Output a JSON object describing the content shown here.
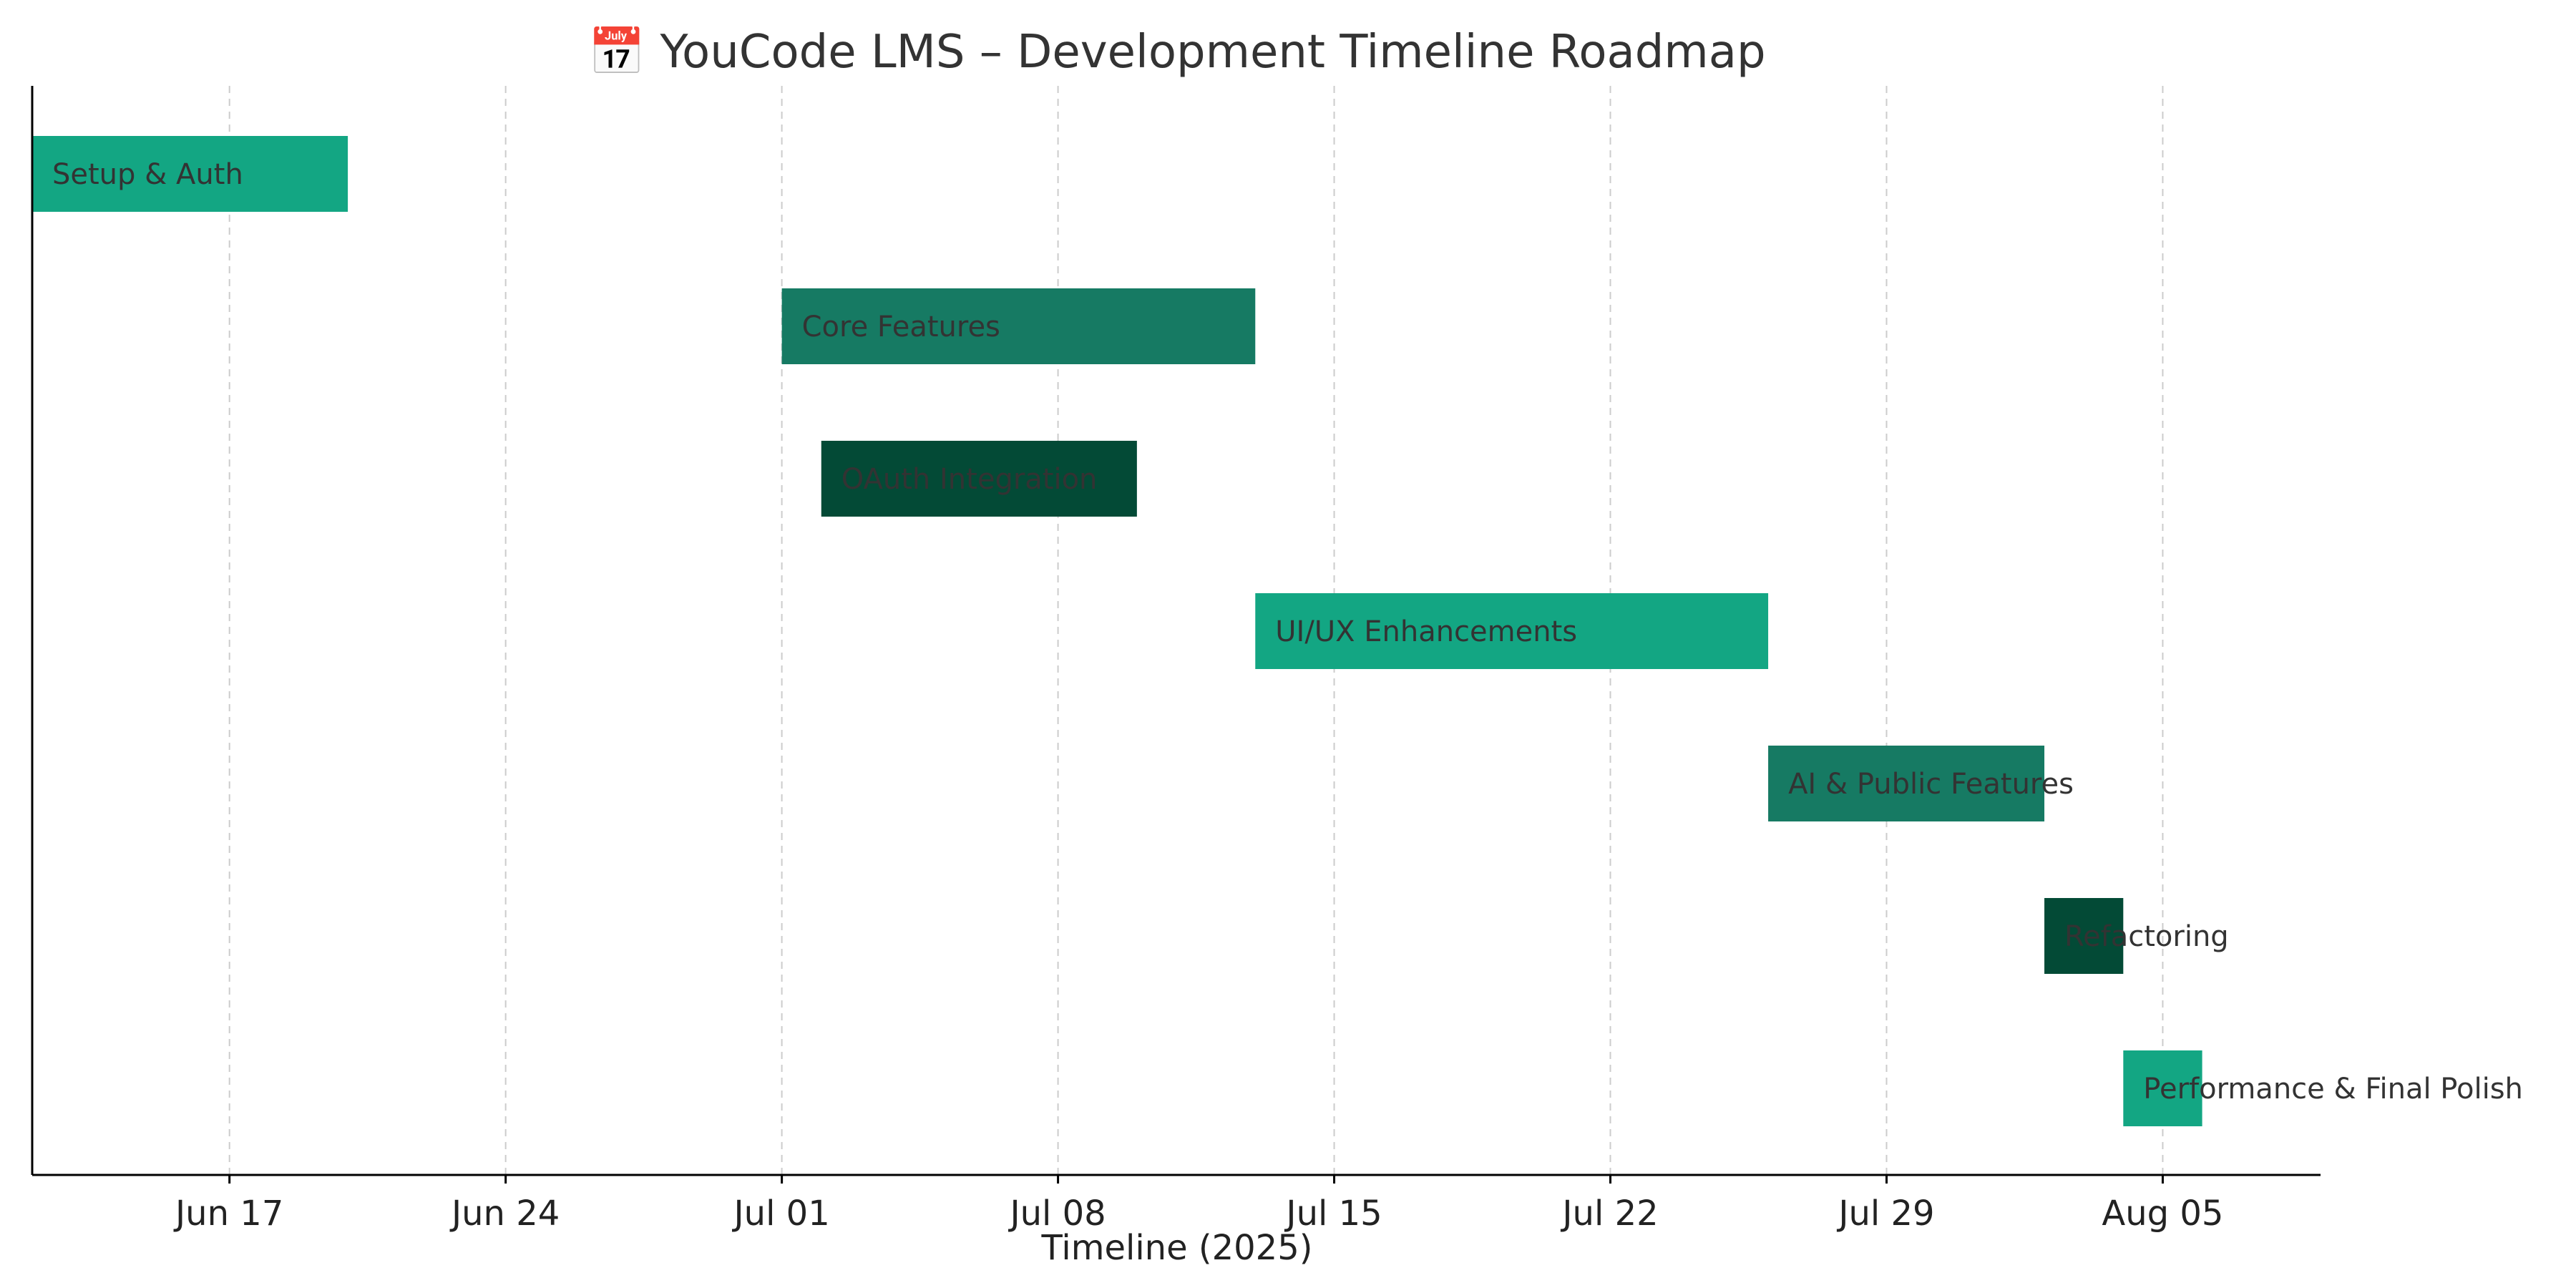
{
  "chart_data": {
    "type": "bar",
    "orientation": "horizontal-gantt",
    "title": "📅 YouCode LMS – Development Timeline Roadmap",
    "xlabel": "Timeline (2025)",
    "ylabel": "",
    "x_axis": "date",
    "xlim": [
      "2025-06-12",
      "2025-08-09"
    ],
    "xticks": [
      {
        "date": "2025-06-17",
        "label": "Jun 17"
      },
      {
        "date": "2025-06-24",
        "label": "Jun 24"
      },
      {
        "date": "2025-07-01",
        "label": "Jul 01"
      },
      {
        "date": "2025-07-08",
        "label": "Jul 08"
      },
      {
        "date": "2025-07-15",
        "label": "Jul 15"
      },
      {
        "date": "2025-07-22",
        "label": "Jul 22"
      },
      {
        "date": "2025-07-29",
        "label": "Jul 29"
      },
      {
        "date": "2025-08-05",
        "label": "Aug 05"
      }
    ],
    "grid": "vertical-dashed",
    "tasks": [
      {
        "name": "Setup & Auth",
        "start": "2025-06-12",
        "end": "2025-06-20",
        "color": "#13a683"
      },
      {
        "name": "Core Features",
        "start": "2025-07-01",
        "end": "2025-07-13",
        "color": "#167a63"
      },
      {
        "name": "OAuth Integration",
        "start": "2025-07-02",
        "end": "2025-07-10",
        "color": "#034a36"
      },
      {
        "name": "UI/UX Enhancements",
        "start": "2025-07-13",
        "end": "2025-07-26",
        "color": "#13a683"
      },
      {
        "name": "AI & Public Features",
        "start": "2025-07-26",
        "end": "2025-08-02",
        "color": "#167a63"
      },
      {
        "name": "Refactoring",
        "start": "2025-08-02",
        "end": "2025-08-04",
        "color": "#034a36"
      },
      {
        "name": "Performance & Final Polish",
        "start": "2025-08-04",
        "end": "2025-08-06",
        "color": "#13a683"
      }
    ]
  }
}
